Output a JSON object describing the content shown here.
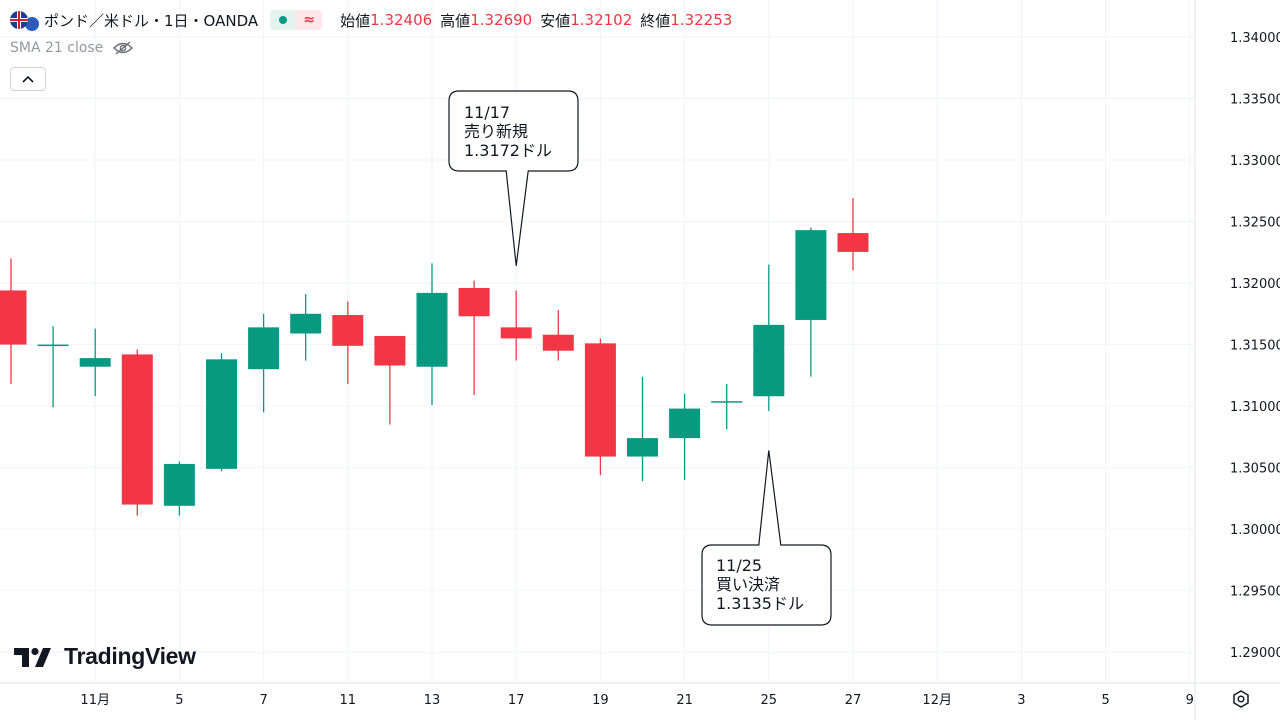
{
  "header": {
    "symbol": "ポンド／米ドル・1日・OANDA",
    "ohlc": [
      {
        "label": "始値",
        "value": "1.32406"
      },
      {
        "label": "高値",
        "value": "1.32690"
      },
      {
        "label": "安値",
        "value": "1.32102"
      },
      {
        "label": "終値",
        "value": "1.32253"
      }
    ],
    "indicator": "SMA 21 close"
  },
  "logo_text": "TradingView",
  "colors": {
    "up": "#089981",
    "down": "#f23645",
    "grid": "#f0f3fa",
    "text": "#131722"
  },
  "chart_data": {
    "type": "candlestick",
    "y_ticks": [
      "1.34000",
      "1.33500",
      "1.33000",
      "1.32500",
      "1.32000",
      "1.31500",
      "1.31000",
      "1.30500",
      "1.30000",
      "1.29500",
      "1.29000"
    ],
    "ylim": [
      1.2875,
      1.343
    ],
    "x_tick_labels": [
      {
        "label": "11月",
        "index": 2
      },
      {
        "label": "5",
        "index": 4
      },
      {
        "label": "7",
        "index": 6
      },
      {
        "label": "11",
        "index": 8
      },
      {
        "label": "13",
        "index": 10
      },
      {
        "label": "17",
        "index": 12
      },
      {
        "label": "19",
        "index": 14
      },
      {
        "label": "21",
        "index": 16
      },
      {
        "label": "25",
        "index": 18
      },
      {
        "label": "27",
        "index": 20
      },
      {
        "label": "12月",
        "index": 22
      },
      {
        "label": "3",
        "index": 24
      },
      {
        "label": "5",
        "index": 26
      },
      {
        "label": "9",
        "index": 28
      }
    ],
    "candles": [
      {
        "o": 1.3194,
        "h": 1.322,
        "l": 1.3118,
        "c": 1.315
      },
      {
        "o": 1.315,
        "h": 1.3165,
        "l": 1.3099,
        "c": 1.315
      },
      {
        "o": 1.3132,
        "h": 1.3163,
        "l": 1.3108,
        "c": 1.3139
      },
      {
        "o": 1.3142,
        "h": 1.3146,
        "l": 1.3011,
        "c": 1.302
      },
      {
        "o": 1.3019,
        "h": 1.3055,
        "l": 1.3011,
        "c": 1.3053
      },
      {
        "o": 1.3049,
        "h": 1.3143,
        "l": 1.3047,
        "c": 1.3138
      },
      {
        "o": 1.313,
        "h": 1.3175,
        "l": 1.3095,
        "c": 1.3164
      },
      {
        "o": 1.3159,
        "h": 1.3191,
        "l": 1.3137,
        "c": 1.3175
      },
      {
        "o": 1.3174,
        "h": 1.3185,
        "l": 1.3118,
        "c": 1.3149
      },
      {
        "o": 1.3157,
        "h": 1.3157,
        "l": 1.3085,
        "c": 1.3133
      },
      {
        "o": 1.3132,
        "h": 1.3216,
        "l": 1.3101,
        "c": 1.3192
      },
      {
        "o": 1.3196,
        "h": 1.3202,
        "l": 1.3109,
        "c": 1.3173
      },
      {
        "o": 1.3164,
        "h": 1.3194,
        "l": 1.3137,
        "c": 1.3155
      },
      {
        "o": 1.3158,
        "h": 1.3178,
        "l": 1.3137,
        "c": 1.3145
      },
      {
        "o": 1.3151,
        "h": 1.3155,
        "l": 1.3044,
        "c": 1.3059
      },
      {
        "o": 1.3059,
        "h": 1.3124,
        "l": 1.3039,
        "c": 1.3074
      },
      {
        "o": 1.3074,
        "h": 1.311,
        "l": 1.304,
        "c": 1.3098
      },
      {
        "o": 1.3104,
        "h": 1.3118,
        "l": 1.3081,
        "c": 1.3104
      },
      {
        "o": 1.3108,
        "h": 1.3215,
        "l": 1.3096,
        "c": 1.3166
      },
      {
        "o": 1.317,
        "h": 1.3245,
        "l": 1.3124,
        "c": 1.3243
      },
      {
        "o": 1.32406,
        "h": 1.3269,
        "l": 1.32102,
        "c": 1.32253
      }
    ],
    "annotations": [
      {
        "lines": [
          "11/17",
          "売り新規",
          "1.3172ドル"
        ],
        "candle_index": 12,
        "price": 1.3214
      },
      {
        "lines": [
          "11/25",
          "買い決済",
          "1.3135ドル"
        ],
        "candle_index": 18,
        "price": 1.3064
      }
    ]
  }
}
